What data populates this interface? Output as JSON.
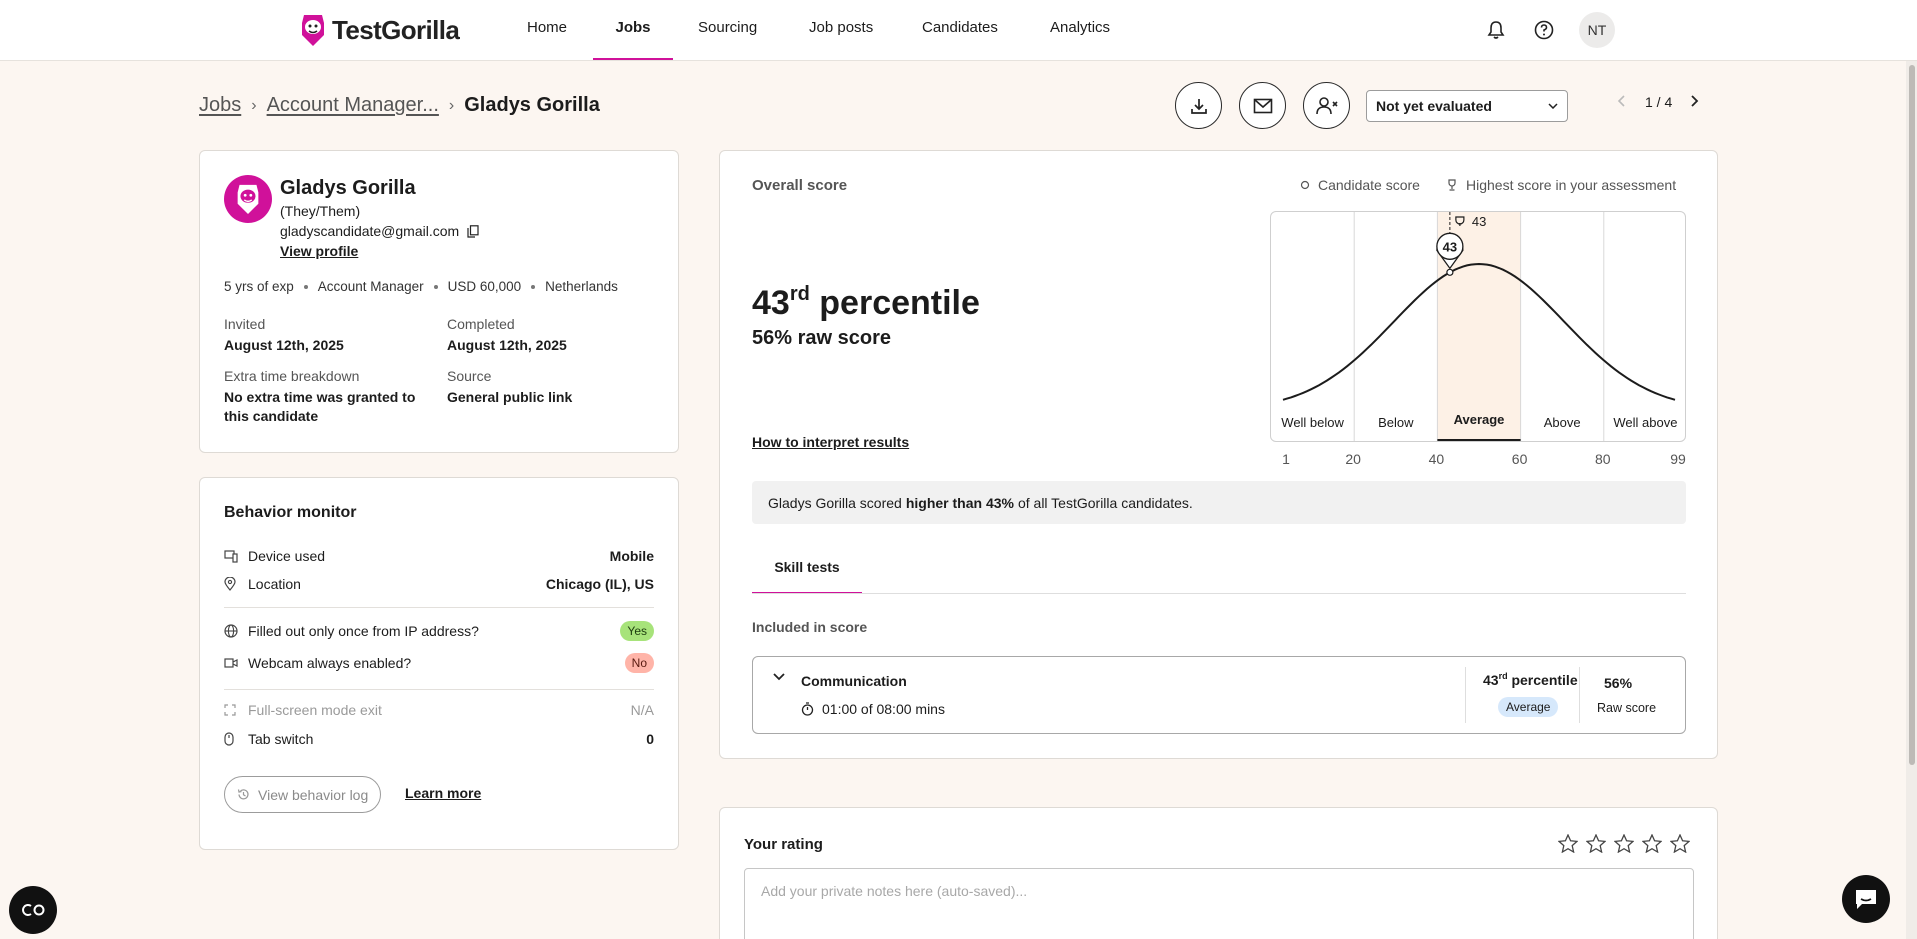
{
  "brand": {
    "name": "TestGorilla",
    "accent": "#d0119a"
  },
  "nav": {
    "items": [
      {
        "label": "Home"
      },
      {
        "label": "Jobs"
      },
      {
        "label": "Sourcing"
      },
      {
        "label": "Job posts"
      },
      {
        "label": "Candidates"
      },
      {
        "label": "Analytics"
      }
    ],
    "active": "Jobs",
    "user_initials": "NT"
  },
  "breadcrumb": {
    "jobs": "Jobs",
    "job": "Account Manager...",
    "candidate": "Gladys Gorilla"
  },
  "toolbar": {
    "status": "Not yet evaluated",
    "pager": "1 / 4"
  },
  "profile": {
    "name": "Gladys Gorilla",
    "pronouns": "(They/Them)",
    "email": "gladyscandidate@gmail.com",
    "view_profile": "View profile",
    "meta": [
      "5 yrs of exp",
      "Account Manager",
      "USD 60,000",
      "Netherlands"
    ],
    "invited_label": "Invited",
    "invited": "August 12th, 2025",
    "completed_label": "Completed",
    "completed": "August 12th, 2025",
    "extra_time_label": "Extra time breakdown",
    "extra_time": "No extra time was granted to this candidate",
    "source_label": "Source",
    "source": "General public link"
  },
  "behavior": {
    "title": "Behavior monitor",
    "device_label": "Device used",
    "device": "Mobile",
    "location_label": "Location",
    "location": "Chicago (IL), US",
    "ip_label": "Filled out only once from IP address?",
    "ip": "Yes",
    "webcam_label": "Webcam always enabled?",
    "webcam": "No",
    "fullscreen_label": "Full-screen mode exit",
    "fullscreen": "N/A",
    "tabswitch_label": "Tab switch",
    "tabswitch": "0",
    "log_button": "View behavior log",
    "learn_more": "Learn more"
  },
  "score": {
    "title": "Overall score",
    "legend_candidate": "Candidate score",
    "legend_highest": "Highest score in your assessment",
    "percentile_num": "43",
    "percentile_suffix": "rd",
    "percentile_word": "percentile",
    "raw": "56% raw score",
    "interpret": "How to interpret results",
    "summary_pre": "Gladys Gorilla scored",
    "summary_bold": "higher than 43%",
    "summary_post": "of all TestGorilla candidates."
  },
  "chart_data": {
    "type": "area",
    "bands": [
      "Well below",
      "Below",
      "Average",
      "Above",
      "Well above"
    ],
    "band_edges": [
      1,
      20,
      40,
      60,
      80,
      99
    ],
    "ticks": [
      "1",
      "20",
      "40",
      "60",
      "80",
      "99"
    ],
    "highlighted_band": "Average",
    "candidate_percentile": 43,
    "candidate_label": "43",
    "highest_percentile": 43,
    "highest_label": "43",
    "xlim": [
      1,
      99
    ]
  },
  "tests": {
    "tab": "Skill tests",
    "section": "Included in score",
    "rows": [
      {
        "name": "Communication",
        "time": "01:00 of 08:00 mins",
        "pct_num": "43",
        "pct_suffix": "rd",
        "pct_word": "percentile",
        "band": "Average",
        "raw": "56%",
        "raw_label": "Raw score"
      }
    ]
  },
  "rating": {
    "title": "Your rating",
    "placeholder": "Add your private notes here (auto-saved)..."
  }
}
